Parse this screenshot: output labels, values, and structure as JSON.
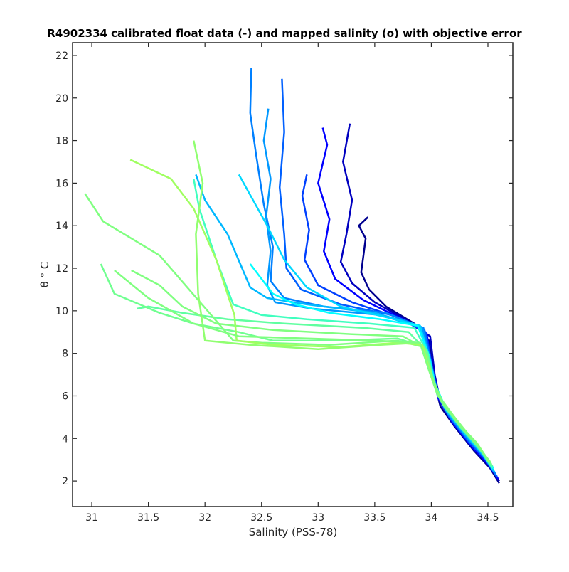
{
  "chart_data": {
    "type": "line",
    "title": "R4902334 calibrated float data (-) and mapped salinity (o) with objective error",
    "xlabel": "Salinity (PSS-78)",
    "ylabel": "θ ° C",
    "xlim": [
      30.83,
      34.72
    ],
    "ylim": [
      0.8,
      22.6
    ],
    "x_ticks": [
      "31",
      "31.5",
      "32",
      "32.5",
      "33",
      "33.5",
      "34",
      "34.5"
    ],
    "y_ticks": [
      "2",
      "4",
      "6",
      "8",
      "10",
      "12",
      "14",
      "16",
      "18",
      "20",
      "22"
    ],
    "grid": false,
    "legend": "none",
    "colormap": [
      "#00008f",
      "#0000ff",
      "#0080ff",
      "#00ffff",
      "#80ff80"
    ],
    "series": [
      {
        "color": "#00008f",
        "x": [
          34.6,
          34.52,
          34.38,
          34.2,
          34.08,
          34.02,
          33.98,
          33.85,
          33.6,
          33.45,
          33.38,
          33.4,
          33.42,
          33.36,
          33.44
        ],
        "y": [
          1.9,
          2.6,
          3.4,
          4.6,
          5.5,
          6.8,
          8.6,
          9.4,
          10.2,
          11.0,
          11.8,
          12.6,
          13.4,
          14.0,
          14.4
        ]
      },
      {
        "color": "#0000c0",
        "x": [
          34.6,
          34.52,
          34.38,
          34.2,
          34.08,
          34.03,
          33.99,
          33.8,
          33.5,
          33.3,
          33.2,
          33.25,
          33.3,
          33.22,
          33.28
        ],
        "y": [
          2.0,
          2.7,
          3.5,
          4.7,
          5.7,
          7.0,
          8.8,
          9.5,
          10.4,
          11.3,
          12.3,
          13.6,
          15.2,
          17.0,
          18.8
        ]
      },
      {
        "color": "#0000ff",
        "x": [
          34.59,
          34.5,
          34.36,
          34.18,
          34.06,
          34.01,
          33.96,
          33.75,
          33.4,
          33.15,
          33.05,
          33.1,
          33.0,
          33.08,
          33.04
        ],
        "y": [
          2.1,
          2.8,
          3.6,
          4.8,
          5.9,
          7.2,
          8.9,
          9.6,
          10.5,
          11.5,
          12.8,
          14.3,
          16.0,
          17.8,
          18.6
        ]
      },
      {
        "color": "#0040ff",
        "x": [
          34.58,
          34.5,
          34.36,
          34.18,
          34.06,
          34.01,
          33.95,
          33.7,
          33.3,
          33.0,
          32.88,
          32.92,
          32.86,
          32.9
        ],
        "y": [
          2.2,
          2.9,
          3.7,
          4.9,
          6.0,
          7.3,
          9.0,
          9.7,
          10.4,
          11.2,
          12.4,
          13.8,
          15.4,
          16.4
        ]
      },
      {
        "color": "#0060ff",
        "x": [
          34.58,
          34.48,
          34.34,
          34.16,
          34.05,
          34.0,
          33.94,
          33.65,
          33.2,
          32.85,
          32.72,
          32.7,
          32.66,
          32.7,
          32.68
        ],
        "y": [
          2.2,
          3.0,
          3.8,
          5.0,
          6.1,
          7.4,
          9.1,
          9.8,
          10.3,
          11.0,
          12.0,
          13.6,
          15.8,
          18.4,
          20.9
        ]
      },
      {
        "color": "#0080ff",
        "x": [
          34.57,
          34.48,
          34.34,
          34.16,
          34.05,
          34.0,
          33.93,
          33.6,
          33.05,
          32.7,
          32.58,
          32.6,
          32.52,
          32.45,
          32.4,
          32.41
        ],
        "y": [
          2.3,
          3.1,
          3.9,
          5.1,
          6.2,
          7.5,
          9.2,
          9.9,
          10.2,
          10.6,
          11.4,
          13.0,
          15.0,
          17.4,
          19.3,
          21.4
        ]
      },
      {
        "color": "#0098ff",
        "x": [
          34.56,
          34.46,
          34.32,
          34.14,
          34.04,
          33.99,
          33.92,
          33.55,
          32.95,
          32.62,
          32.55,
          32.58,
          32.54,
          32.58,
          32.52,
          32.56
        ],
        "y": [
          2.4,
          3.2,
          4.0,
          5.2,
          6.3,
          7.6,
          9.2,
          9.8,
          10.1,
          10.4,
          11.2,
          12.8,
          14.4,
          16.2,
          18.0,
          19.5
        ]
      },
      {
        "color": "#00b8ff",
        "x": [
          34.56,
          34.46,
          34.32,
          34.14,
          34.04,
          33.99,
          33.9,
          33.5,
          32.9,
          32.55,
          32.4,
          32.32,
          32.2,
          32.0,
          31.92
        ],
        "y": [
          2.4,
          3.2,
          4.1,
          5.3,
          6.4,
          7.7,
          9.3,
          9.9,
          10.3,
          10.6,
          11.1,
          12.1,
          13.6,
          15.2,
          16.4
        ]
      },
      {
        "color": "#00d8ff",
        "x": [
          34.55,
          34.45,
          34.3,
          34.12,
          34.03,
          33.98,
          33.9,
          33.6,
          33.2,
          32.9,
          32.7,
          32.55,
          32.3
        ],
        "y": [
          2.5,
          3.3,
          4.2,
          5.4,
          6.5,
          7.8,
          9.3,
          9.7,
          10.2,
          11.1,
          12.4,
          14.0,
          16.4
        ]
      },
      {
        "color": "#00ffff",
        "x": [
          34.55,
          34.44,
          34.3,
          34.12,
          34.03,
          33.98,
          33.88,
          33.55,
          33.1,
          32.8,
          32.6,
          32.5,
          32.4
        ],
        "y": [
          2.6,
          3.4,
          4.3,
          5.5,
          6.6,
          7.9,
          9.3,
          9.6,
          9.9,
          10.3,
          10.8,
          11.5,
          12.2
        ]
      },
      {
        "color": "#40ffbf",
        "x": [
          34.54,
          34.44,
          34.3,
          34.12,
          34.02,
          33.97,
          33.85,
          33.45,
          32.9,
          32.5,
          32.25,
          32.1,
          31.95,
          31.9
        ],
        "y": [
          2.6,
          3.4,
          4.3,
          5.5,
          6.6,
          8.0,
          9.2,
          9.4,
          9.6,
          9.8,
          10.3,
          12.4,
          14.8,
          16.2
        ]
      },
      {
        "color": "#60ffa0",
        "x": [
          34.54,
          34.43,
          34.28,
          34.1,
          34.02,
          33.96,
          33.8,
          33.4,
          32.7,
          32.2,
          31.8,
          31.5,
          31.4
        ],
        "y": [
          2.7,
          3.5,
          4.4,
          5.6,
          6.7,
          8.1,
          9.0,
          9.2,
          9.4,
          9.6,
          9.9,
          10.2,
          10.1
        ]
      },
      {
        "color": "#80ff80",
        "x": [
          34.53,
          34.42,
          34.28,
          34.1,
          34.01,
          33.95,
          33.75,
          33.3,
          32.6,
          32.1,
          31.8,
          31.6,
          31.35
        ],
        "y": [
          2.8,
          3.6,
          4.5,
          5.7,
          6.8,
          8.2,
          8.8,
          8.9,
          9.1,
          9.4,
          10.2,
          11.2,
          11.9
        ]
      },
      {
        "color": "#70ff90",
        "x": [
          34.52,
          34.42,
          34.26,
          34.08,
          34.0,
          33.94,
          33.7,
          33.2,
          32.6,
          32.3,
          31.9,
          31.6,
          31.2,
          31.08
        ],
        "y": [
          2.8,
          3.6,
          4.5,
          5.8,
          6.9,
          8.3,
          8.7,
          8.6,
          8.6,
          9.0,
          9.4,
          9.9,
          10.8,
          12.2
        ]
      },
      {
        "color": "#80ff80",
        "x": [
          34.52,
          34.4,
          34.26,
          34.08,
          34.0,
          33.93,
          33.7,
          33.1,
          32.5,
          32.25,
          31.6,
          31.1,
          30.94
        ],
        "y": [
          2.9,
          3.7,
          4.6,
          5.9,
          7.0,
          8.3,
          8.6,
          8.4,
          8.5,
          8.6,
          12.6,
          14.2,
          15.5
        ]
      },
      {
        "color": "#a0ff60",
        "x": [
          34.51,
          34.4,
          34.24,
          34.06,
          33.99,
          33.92,
          33.7,
          33.2,
          32.6,
          32.28,
          32.26,
          32.1,
          31.9,
          31.7,
          31.34
        ],
        "y": [
          2.9,
          3.8,
          4.7,
          6.0,
          7.1,
          8.4,
          8.5,
          8.3,
          8.4,
          8.6,
          9.8,
          12.4,
          14.8,
          16.2,
          17.1
        ]
      },
      {
        "color": "#90ff70",
        "x": [
          34.5,
          34.4,
          34.24,
          34.06,
          33.98,
          33.9,
          33.55,
          33.0,
          32.4,
          32.0,
          31.94,
          31.92,
          31.98,
          31.9
        ],
        "y": [
          3.0,
          3.8,
          4.7,
          6.0,
          7.2,
          8.5,
          8.4,
          8.2,
          8.4,
          8.6,
          10.8,
          13.6,
          16.0,
          18.0
        ]
      },
      {
        "color": "#80ff80",
        "x": [
          34.5,
          34.38,
          34.22,
          34.05,
          33.98,
          33.9,
          33.5,
          32.9,
          32.3,
          31.9,
          31.5,
          31.2
        ],
        "y": [
          3.0,
          3.9,
          4.8,
          6.1,
          7.2,
          8.5,
          8.6,
          8.7,
          8.8,
          9.4,
          10.6,
          11.9
        ]
      }
    ]
  }
}
